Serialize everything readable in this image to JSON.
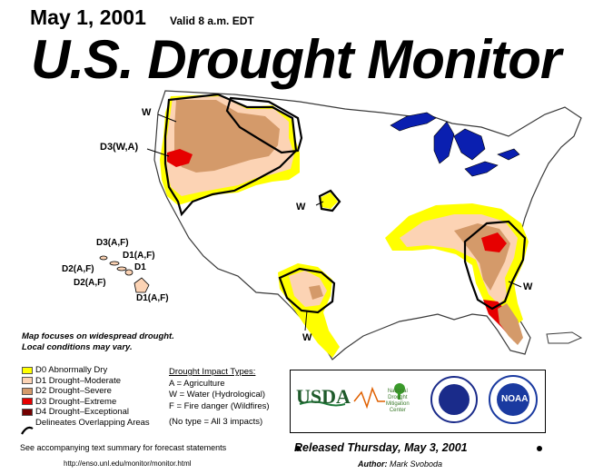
{
  "header": {
    "date": "May 1, 2001",
    "valid": "Valid 8 a.m. EDT",
    "title": "U.S. Drought Monitor"
  },
  "map_labels": {
    "w_northwest": "W",
    "d3_wa": "D3(W,A)",
    "w_central": "W",
    "w_southeast": "W",
    "w_texas": "W"
  },
  "hawaii_labels": {
    "d3_af": "D3(A,F)",
    "d1_af_a": "D1(A,F)",
    "d2_af_a": "D2(A,F)",
    "d1": "D1",
    "d2_af_b": "D2(A,F)",
    "d1_af_b": "D1(A,F)"
  },
  "note": {
    "line1": "Map focuses on widespread drought.",
    "line2": "Local conditions may vary."
  },
  "legend": {
    "items": [
      {
        "label": "D0 Abnormally Dry",
        "color": "#ffff00"
      },
      {
        "label": "D1 Drought–Moderate",
        "color": "#fcd3b4"
      },
      {
        "label": "D2 Drought–Severe",
        "color": "#d49a6a"
      },
      {
        "label": "D3 Drought–Extreme",
        "color": "#e60000"
      },
      {
        "label": "D4 Drought–Exceptional",
        "color": "#730000"
      }
    ],
    "overlap": "Delineates Overlapping Areas"
  },
  "impacts": {
    "heading": "Drought Impact Types:",
    "a": "A = Agriculture",
    "w": "W = Water (Hydrological)",
    "f": "F = Fire danger (Wildfires)",
    "none": "(No type = All 3 impacts)"
  },
  "logos": {
    "usda": "USDA",
    "ndmc_line1": "National",
    "ndmc_line2": "Drought",
    "ndmc_line3": "Mitigation",
    "ndmc_line4": "Center",
    "noaa": "NOAA"
  },
  "footer": {
    "see": "See accompanying text summary for forecast statements",
    "url": "http://enso.unl.edu/monitor/monitor.html",
    "released": "Released Thursday, May 3, 2001",
    "author_label": "Author:",
    "author_name": "Mark Svoboda"
  }
}
